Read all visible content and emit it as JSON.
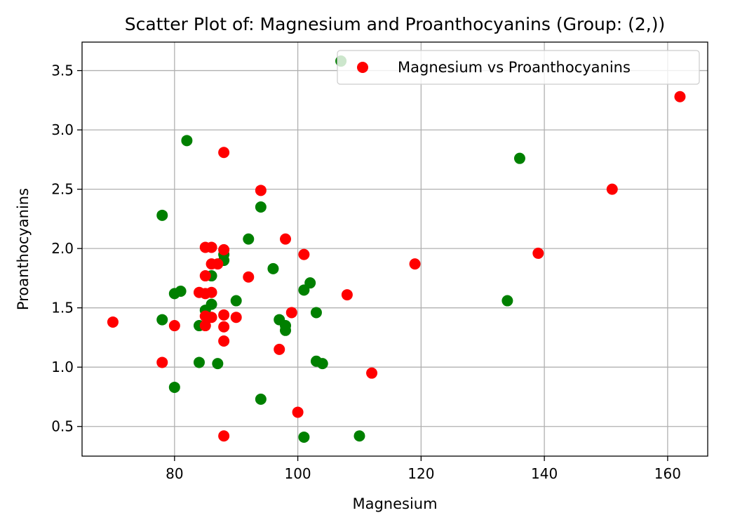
{
  "chart_data": {
    "type": "scatter",
    "title": "Scatter Plot of: Magnesium and Proanthocyanins (Group: (2,))",
    "xlabel": "Magnesium",
    "ylabel": "Proanthocyanins",
    "xlim": [
      65,
      166.5
    ],
    "ylim": [
      0.25,
      3.74
    ],
    "xticks": [
      80,
      100,
      120,
      140,
      160
    ],
    "yticks": [
      0.5,
      1.0,
      1.5,
      2.0,
      2.5,
      3.0,
      3.5
    ],
    "xtick_labels": [
      "80",
      "100",
      "120",
      "140",
      "160"
    ],
    "ytick_labels": [
      "0.5",
      "1.0",
      "1.5",
      "2.0",
      "2.5",
      "3.0",
      "3.5"
    ],
    "grid": true,
    "legend_position": "top-right",
    "series": [
      {
        "name": "",
        "color": "#008000",
        "x": [
          107,
          82,
          136,
          78,
          94,
          92,
          88,
          88,
          96,
          102,
          101,
          81,
          80,
          86,
          134,
          90,
          103,
          85,
          86,
          97,
          98,
          98,
          84,
          78,
          84,
          87,
          103,
          104,
          80,
          94,
          110,
          101
        ],
        "y": [
          3.58,
          2.91,
          2.76,
          2.28,
          2.35,
          2.08,
          1.95,
          1.9,
          1.83,
          1.71,
          1.65,
          1.64,
          1.62,
          1.77,
          1.56,
          1.56,
          1.46,
          1.48,
          1.53,
          1.4,
          1.35,
          1.31,
          1.35,
          1.4,
          1.04,
          1.03,
          1.05,
          1.03,
          0.83,
          0.73,
          0.42,
          0.41
        ]
      },
      {
        "name": "Magnesium vs Proanthocyanins",
        "color": "#ff0000",
        "x": [
          162,
          151,
          139,
          119,
          108,
          112,
          88,
          94,
          98,
          101,
          85,
          86,
          88,
          86,
          87,
          85,
          92,
          84,
          85,
          86,
          85,
          88,
          90,
          86,
          85,
          88,
          99,
          70,
          80,
          78,
          88,
          97,
          100,
          88
        ],
        "y": [
          3.28,
          2.5,
          1.96,
          1.87,
          1.61,
          0.95,
          2.81,
          2.49,
          2.08,
          1.95,
          2.01,
          2.01,
          1.99,
          1.87,
          1.87,
          1.77,
          1.76,
          1.63,
          1.62,
          1.63,
          1.43,
          1.44,
          1.42,
          1.42,
          1.35,
          1.34,
          1.46,
          1.38,
          1.35,
          1.04,
          1.22,
          1.15,
          0.62,
          0.42
        ]
      }
    ]
  }
}
